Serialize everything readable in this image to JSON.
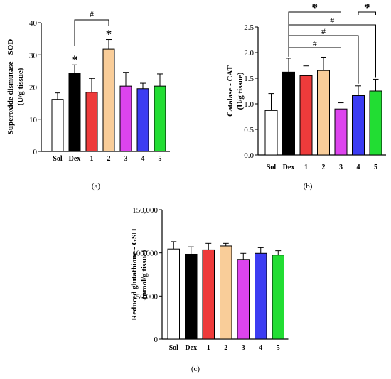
{
  "chart_data": [
    {
      "panel": "(a)",
      "type": "bar",
      "ylabel_line1": "Superoxide dismutase - SOD",
      "ylabel_line2": "(U/g tissue)",
      "categories": [
        "Sol",
        "Dex",
        "1",
        "2",
        "3",
        "4",
        "5"
      ],
      "values": [
        16.2,
        24.3,
        18.4,
        31.8,
        20.3,
        19.5,
        20.3
      ],
      "errors": [
        2.0,
        2.6,
        4.3,
        3.0,
        4.3,
        1.7,
        3.8
      ],
      "colors": [
        "#ffffff",
        "#000000",
        "#ee3b3b",
        "#f9cd99",
        "#dd44ee",
        "#3c3cf2",
        "#22dd33"
      ],
      "ylim": [
        0,
        40
      ],
      "yticks": [
        0,
        10,
        20,
        30,
        40
      ],
      "ytick_labels": [
        "0",
        "10",
        "20",
        "30",
        "40"
      ],
      "star_marks": [
        {
          "category": "Dex",
          "label": "*"
        },
        {
          "category": "2",
          "label": "*"
        }
      ],
      "brackets": [
        {
          "from": "Dex",
          "to": "2",
          "label": "#"
        }
      ]
    },
    {
      "panel": "(b)",
      "type": "bar",
      "ylabel_line1": "Catalase - CAT",
      "ylabel_line2": "(U/g tissue)",
      "categories": [
        "Sol",
        "Dex",
        "1",
        "2",
        "3",
        "4",
        "5"
      ],
      "values": [
        0.87,
        1.62,
        1.55,
        1.65,
        0.9,
        1.16,
        1.25
      ],
      "errors": [
        0.33,
        0.27,
        0.19,
        0.26,
        0.12,
        0.19,
        0.23
      ],
      "colors": [
        "#ffffff",
        "#000000",
        "#ee3b3b",
        "#f9cd99",
        "#dd44ee",
        "#3c3cf2",
        "#22dd33"
      ],
      "ylim": [
        0,
        2.5
      ],
      "yticks": [
        0,
        0.5,
        1.0,
        1.5,
        2.0,
        2.5
      ],
      "ytick_labels": [
        "0.0",
        "0.5",
        "1.0",
        "1.5",
        "2.0",
        "2.5"
      ],
      "brackets": [
        {
          "from": "Dex",
          "to": "3",
          "label": "*"
        },
        {
          "from": "4",
          "to": "5",
          "label": "*"
        },
        {
          "from": "Dex",
          "to": "5",
          "label": "#"
        },
        {
          "from": "Dex",
          "to": "4",
          "label": "#"
        },
        {
          "from": "Dex",
          "to": "3",
          "label": "#"
        }
      ]
    },
    {
      "panel": "(c)",
      "type": "bar",
      "ylabel_line1": "Reduced glutathione - GSH",
      "ylabel_line2": "(nmol/g tissue)",
      "categories": [
        "Sol",
        "Dex",
        "1",
        "2",
        "3",
        "4",
        "5"
      ],
      "values": [
        104500,
        98500,
        103500,
        108000,
        92500,
        99500,
        97500
      ],
      "errors": [
        8500,
        8500,
        7500,
        3000,
        7000,
        6500,
        5000
      ],
      "colors": [
        "#ffffff",
        "#000000",
        "#ee3b3b",
        "#f9cd99",
        "#dd44ee",
        "#3c3cf2",
        "#22dd33"
      ],
      "ylim": [
        0,
        150000
      ],
      "yticks": [
        0,
        50000,
        100000,
        150000
      ],
      "ytick_labels": [
        "0",
        "50,000",
        "100,000",
        "150,000"
      ]
    }
  ]
}
